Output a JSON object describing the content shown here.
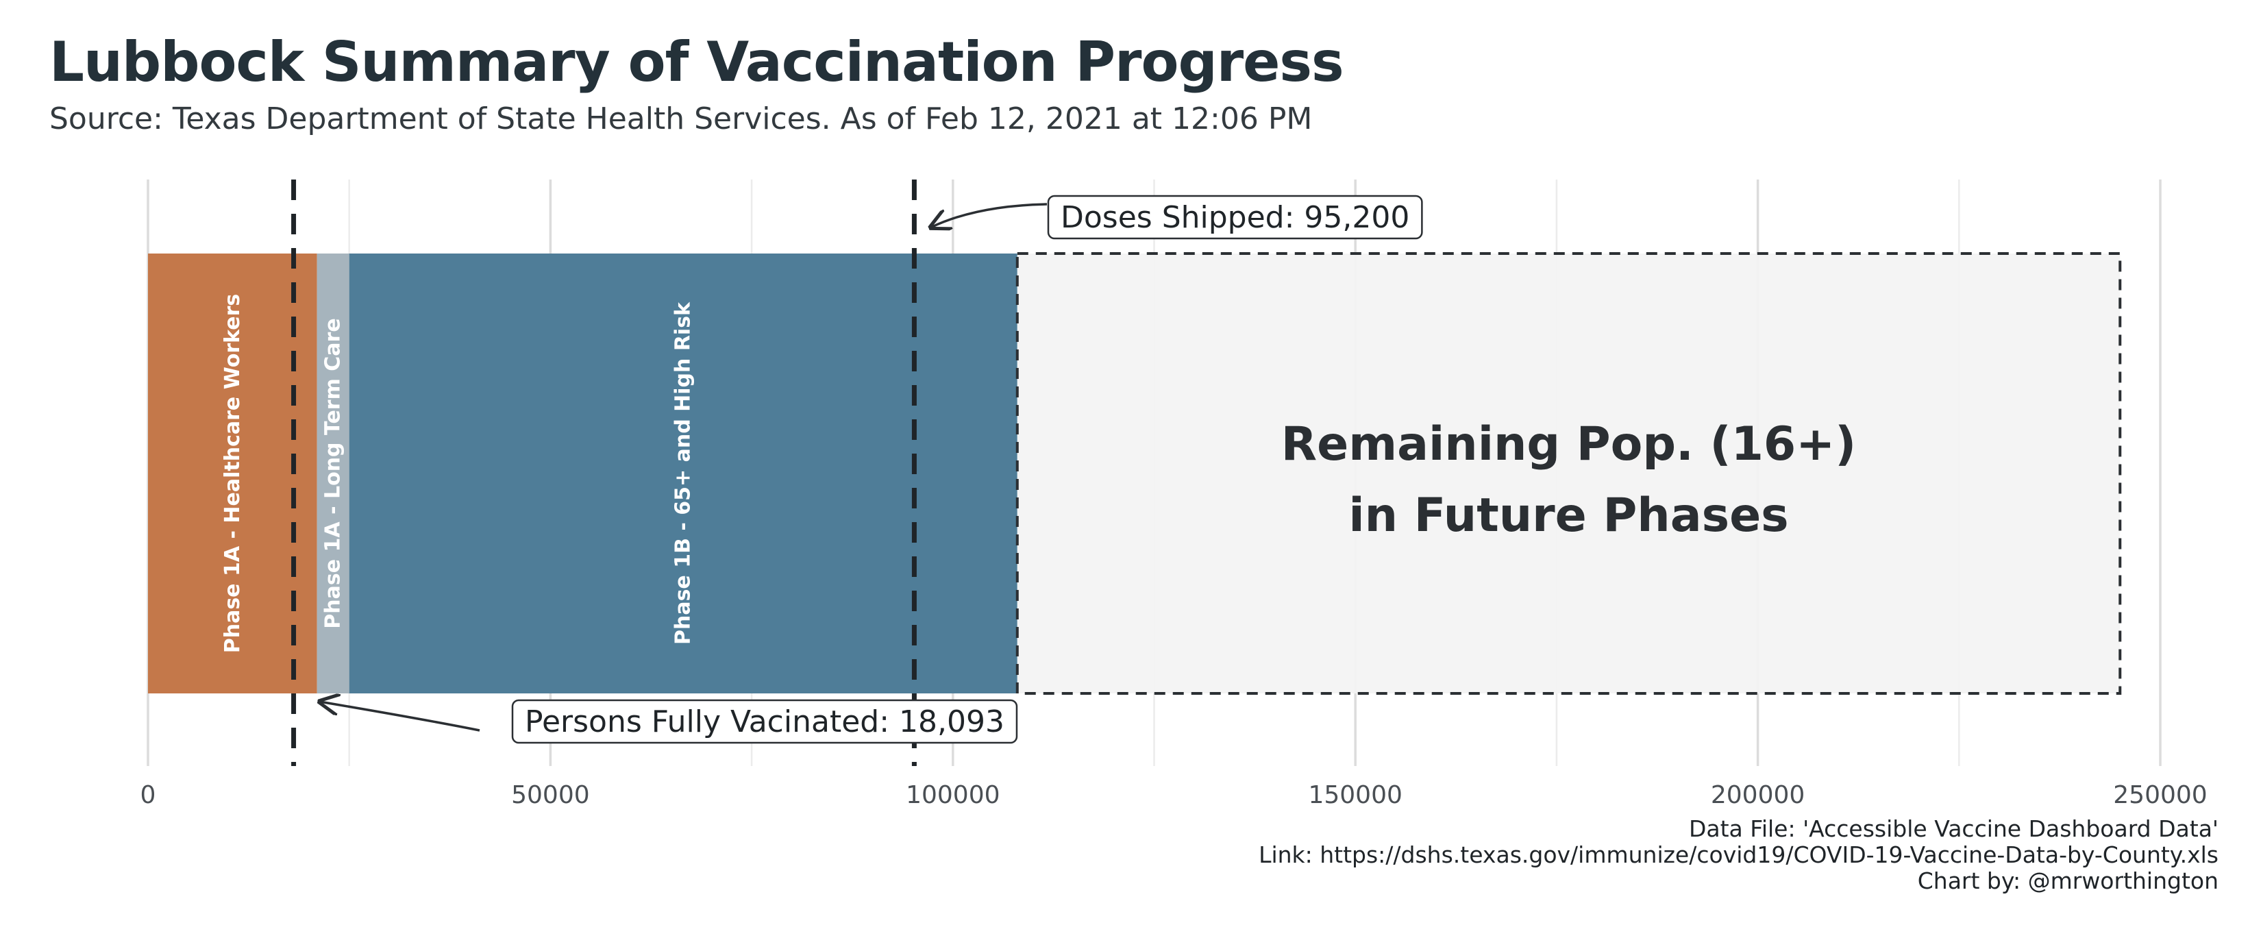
{
  "title": "Lubbock Summary of Vaccination Progress",
  "subtitle": "Source: Texas Department of State Health Services. As of Feb 12, 2021 at 12:06 PM",
  "caption": {
    "data_file": "Data File: 'Accessible Vaccine Dashboard Data'",
    "link": "Link: https://dshs.texas.gov/immunize/covid19/COVID-19-Vaccine-Data-by-County.xls",
    "credit": "Chart by: @mrworthington"
  },
  "chart_data": {
    "type": "bar",
    "orientation": "horizontal-stacked",
    "xlim": [
      0,
      250000
    ],
    "x_ticks": [
      0,
      50000,
      100000,
      150000,
      200000,
      250000
    ],
    "x_tick_labels": [
      "0",
      "50000",
      "100000",
      "150000",
      "200000",
      "250000"
    ],
    "grid": true,
    "segments": [
      {
        "label": "Phase 1A - Healthcare Workers",
        "start": 0,
        "end": 21000,
        "color": "#c4784a",
        "text_color": "#ffffff"
      },
      {
        "label": "Phase 1A - Long Term Care",
        "start": 21000,
        "end": 25000,
        "color": "#a6b4bd",
        "text_color": "#ffffff"
      },
      {
        "label": "Phase 1B - 65+ and High Risk",
        "start": 25000,
        "end": 108000,
        "color": "#4f7d98",
        "text_color": "#ffffff"
      }
    ],
    "remaining": {
      "label_lines": [
        "Remaining Pop. (16+)",
        "in Future Phases"
      ],
      "start": 108000,
      "end": 245000,
      "fill": "#f3f3f3",
      "border": "#2b2f33"
    },
    "reference_lines": [
      {
        "name": "Doses Shipped",
        "value": 95200,
        "label": "Doses Shipped: 95,200"
      },
      {
        "name": "Persons Fully Vacinated",
        "value": 18093,
        "label": "Persons Fully Vacinated: 18,093"
      }
    ]
  }
}
